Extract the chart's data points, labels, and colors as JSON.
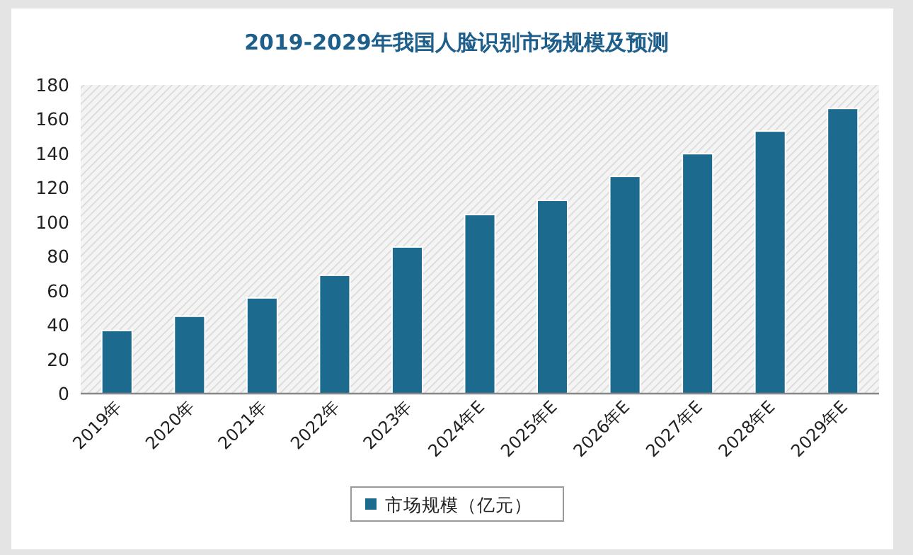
{
  "chart_data": {
    "type": "bar",
    "title": "2019-2029年我国人脸识别市场规模及预测",
    "categories": [
      "2019年",
      "2020年",
      "2021年",
      "2022年",
      "2023年",
      "2024年E",
      "2025年E",
      "2026年E",
      "2027年E",
      "2028年E",
      "2029年E"
    ],
    "series": [
      {
        "name": "市场规模（亿元）",
        "color": "#1c6b8e",
        "values": [
          36.8,
          45.1,
          55.8,
          69,
          85.5,
          104.4,
          112.7,
          126.7,
          139.9,
          153.1,
          166.3
        ]
      }
    ],
    "ylim": [
      0,
      180
    ],
    "yticks": [
      0,
      20,
      40,
      60,
      80,
      100,
      120,
      140,
      160,
      180
    ],
    "legend": "bottom",
    "grid": false
  }
}
